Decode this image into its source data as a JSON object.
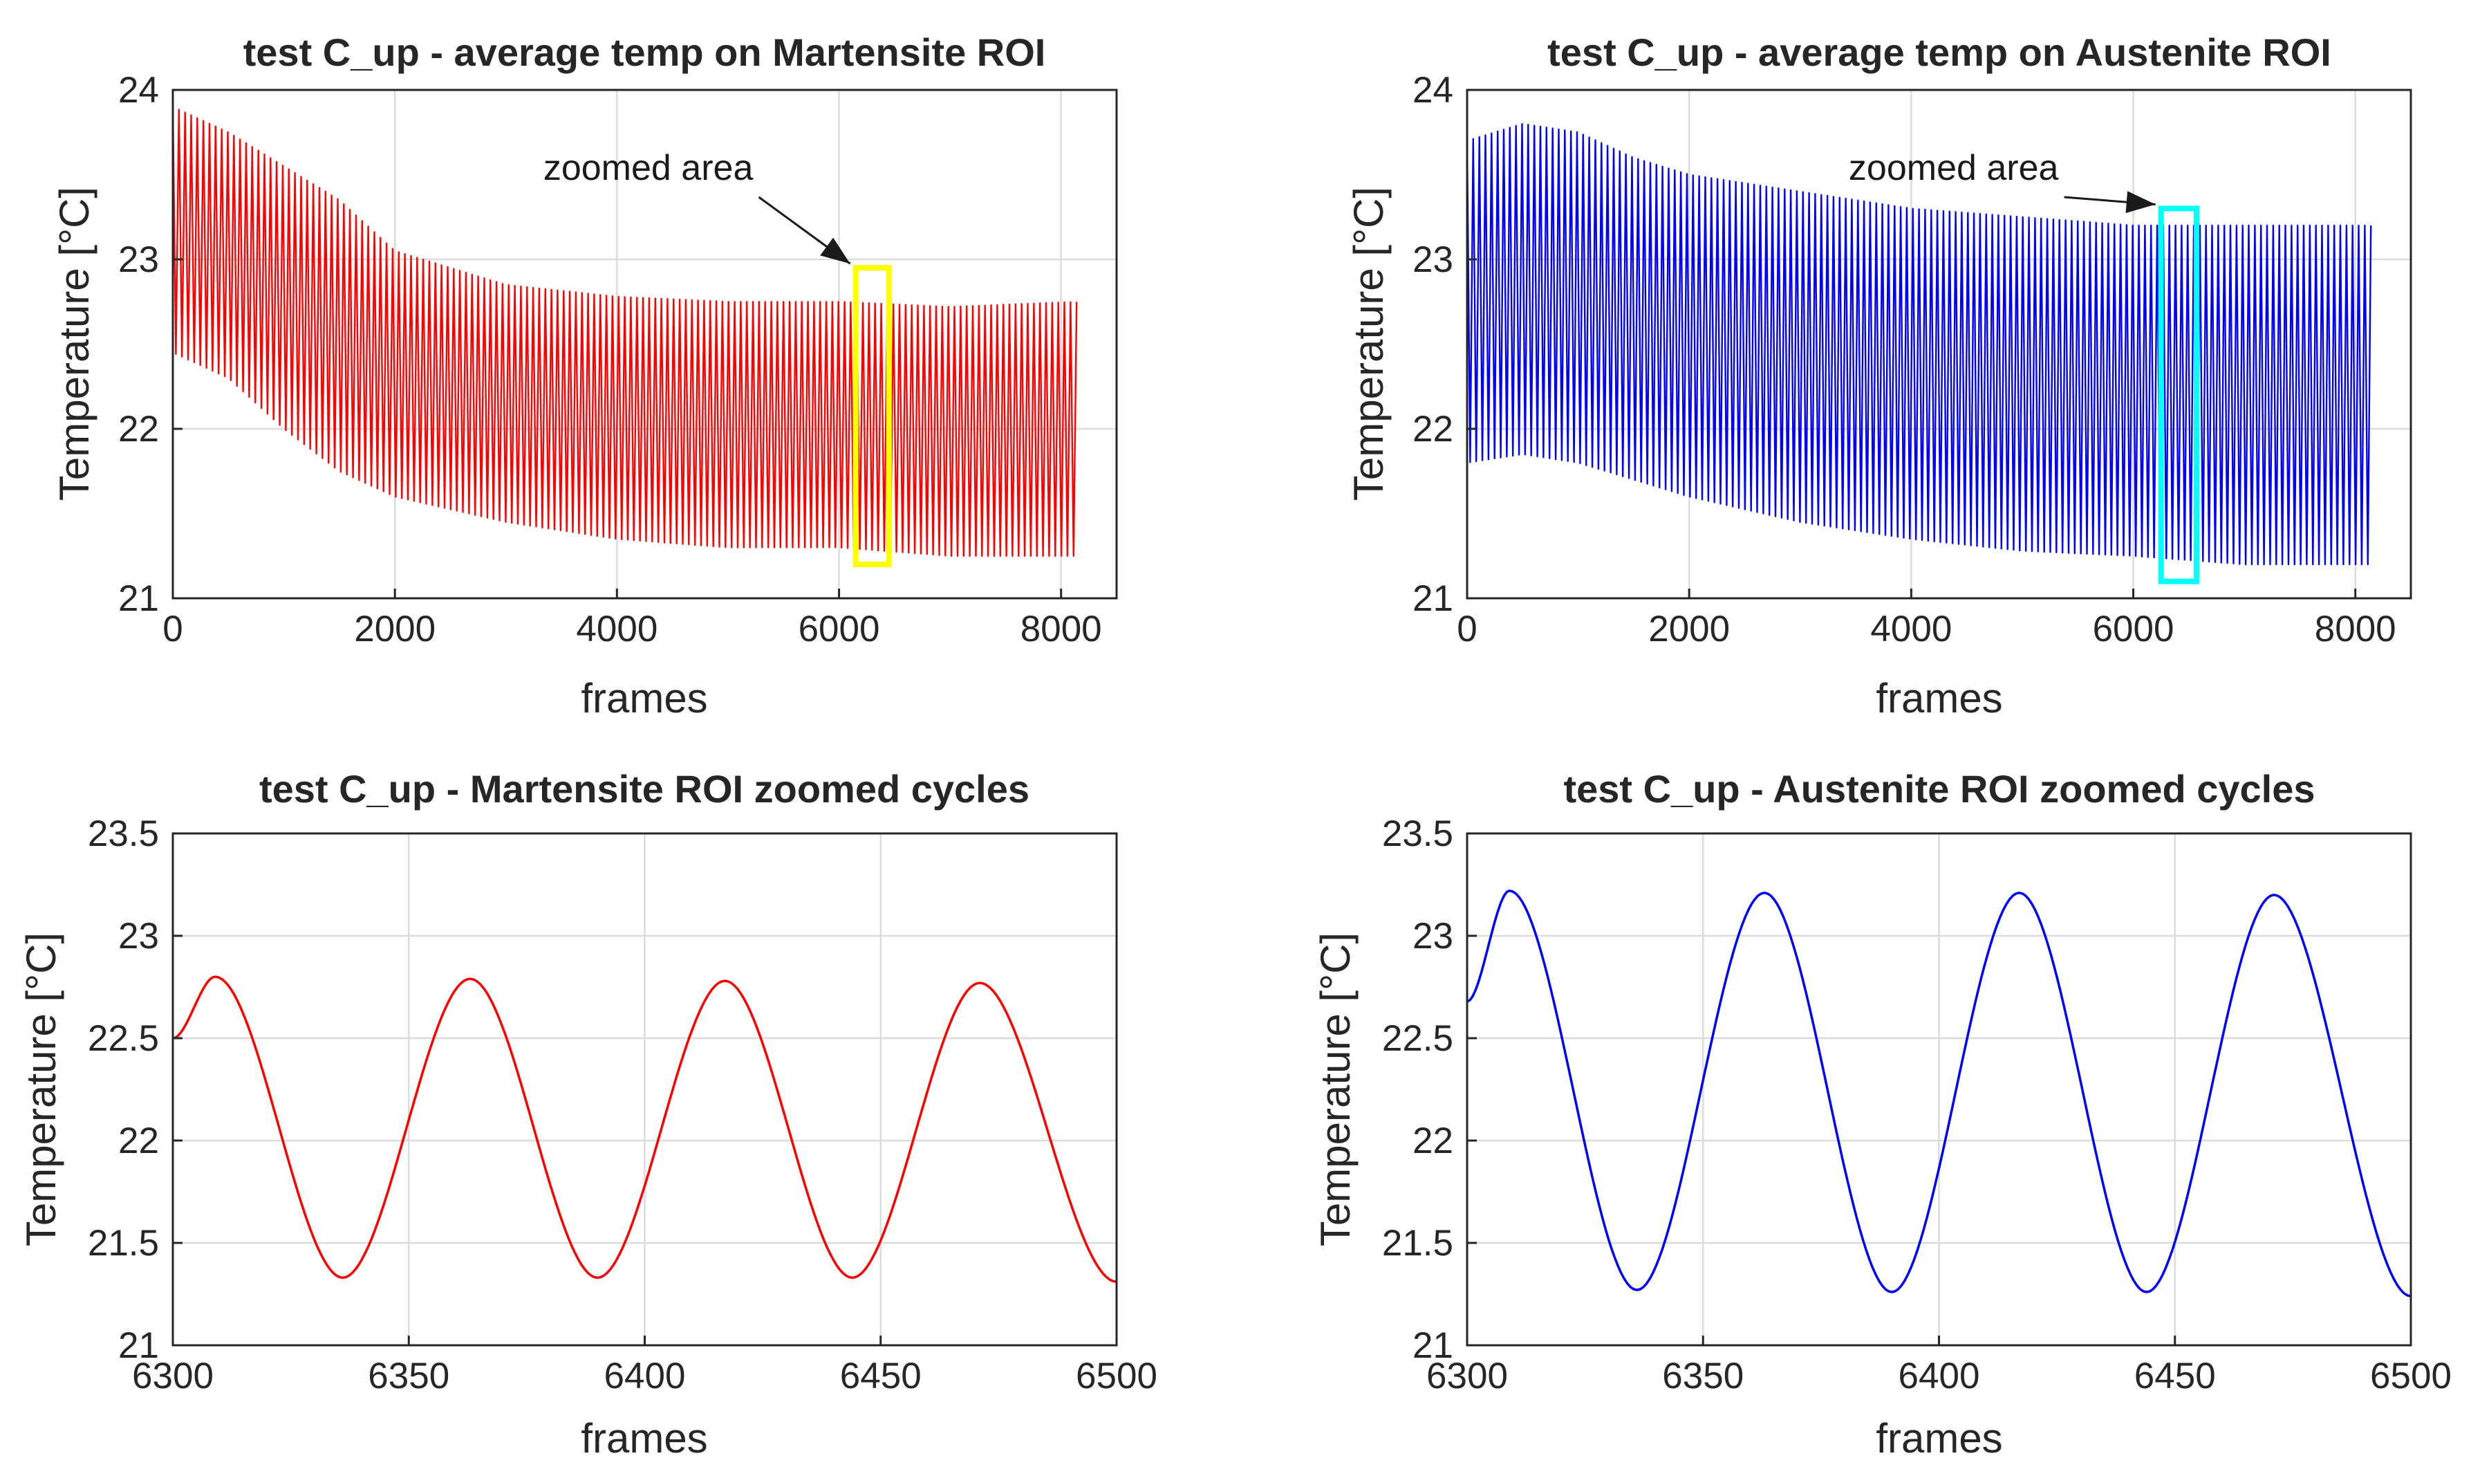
{
  "chart_data": [
    {
      "type": "line",
      "title": "test C_up - average temp on Martensite ROI",
      "xlabel": "frames",
      "ylabel": "Temperature [°C]",
      "xlim": [
        0,
        8500
      ],
      "ylim": [
        21,
        24
      ],
      "xticks": [
        0,
        2000,
        4000,
        6000,
        8000
      ],
      "yticks": [
        21,
        22,
        23,
        24
      ],
      "xtick_labels": [
        "0",
        "2000",
        "4000",
        "6000",
        "8000"
      ],
      "ytick_labels": [
        "21",
        "22",
        "23",
        "24"
      ],
      "grid": true,
      "color": "#ff0000",
      "style": "dense-oscillation",
      "x_range": [
        0,
        8150
      ],
      "upper_envelope": {
        "x": [
          0,
          500,
          1000,
          1500,
          2000,
          3000,
          4000,
          5000,
          6000,
          7000,
          8150
        ],
        "y": [
          23.9,
          23.75,
          23.55,
          23.35,
          23.05,
          22.85,
          22.78,
          22.75,
          22.75,
          22.72,
          22.75
        ]
      },
      "lower_envelope": {
        "x": [
          0,
          500,
          1000,
          1500,
          2000,
          3000,
          4000,
          5000,
          6000,
          7000,
          8150
        ],
        "y": [
          22.45,
          22.3,
          22.0,
          21.75,
          21.6,
          21.45,
          21.35,
          21.3,
          21.3,
          21.25,
          21.25
        ]
      },
      "annotation": {
        "text": "zoomed area",
        "box_x": [
          6150,
          6450
        ],
        "box_y": [
          21.2,
          22.95
        ],
        "box_color": "#ffff00"
      }
    },
    {
      "type": "line",
      "title": "test C_up - average temp on Austenite ROI",
      "xlabel": "frames",
      "ylabel": "Temperature [°C]",
      "xlim": [
        0,
        8500
      ],
      "ylim": [
        21,
        24
      ],
      "xticks": [
        0,
        2000,
        4000,
        6000,
        8000
      ],
      "yticks": [
        21,
        22,
        23,
        24
      ],
      "xtick_labels": [
        "0",
        "2000",
        "4000",
        "6000",
        "8000"
      ],
      "ytick_labels": [
        "21",
        "22",
        "23",
        "24"
      ],
      "grid": true,
      "color": "#0000ff",
      "style": "dense-oscillation",
      "x_range": [
        0,
        8150
      ],
      "upper_envelope": {
        "x": [
          0,
          500,
          1000,
          1500,
          2000,
          3000,
          4000,
          5000,
          6000,
          7000,
          8150
        ],
        "y": [
          23.7,
          23.8,
          23.75,
          23.6,
          23.5,
          23.4,
          23.3,
          23.25,
          23.2,
          23.2,
          23.2
        ]
      },
      "lower_envelope": {
        "x": [
          0,
          500,
          1000,
          1500,
          2000,
          3000,
          4000,
          5000,
          6000,
          7000,
          8150
        ],
        "y": [
          21.8,
          21.85,
          21.8,
          21.7,
          21.6,
          21.45,
          21.35,
          21.28,
          21.25,
          21.2,
          21.2
        ]
      },
      "annotation": {
        "text": "zoomed area",
        "box_x": [
          6250,
          6570
        ],
        "box_y": [
          21.1,
          23.3
        ],
        "box_color": "#00ffff"
      }
    },
    {
      "type": "line",
      "title": "test C_up - Martensite ROI zoomed cycles",
      "xlabel": "frames",
      "ylabel": "Temperature [°C]",
      "xlim": [
        6300,
        6500
      ],
      "ylim": [
        21,
        23.5
      ],
      "xticks": [
        6300,
        6350,
        6400,
        6450,
        6500
      ],
      "yticks": [
        21,
        21.5,
        22,
        22.5,
        23,
        23.5
      ],
      "xtick_labels": [
        "6300",
        "6350",
        "6400",
        "6450",
        "6500"
      ],
      "ytick_labels": [
        "21",
        "21.5",
        "22",
        "22.5",
        "23",
        "23.5"
      ],
      "grid": true,
      "color": "#ff0000",
      "style": "line",
      "x": [
        6300,
        6309,
        6336,
        6363,
        6390,
        6417,
        6444,
        6471,
        6500
      ],
      "y": [
        22.5,
        22.8,
        21.33,
        22.79,
        21.33,
        22.78,
        21.33,
        22.77,
        21.31
      ]
    },
    {
      "type": "line",
      "title": "test C_up - Austenite ROI zoomed cycles",
      "xlabel": "frames",
      "ylabel": "Temperature [°C]",
      "xlim": [
        6300,
        6500
      ],
      "ylim": [
        21,
        23.5
      ],
      "xticks": [
        6300,
        6350,
        6400,
        6450,
        6500
      ],
      "yticks": [
        21,
        21.5,
        22,
        22.5,
        23,
        23.5
      ],
      "xtick_labels": [
        "6300",
        "6350",
        "6400",
        "6450",
        "6500"
      ],
      "ytick_labels": [
        "21",
        "21.5",
        "22",
        "22.5",
        "23",
        "23.5"
      ],
      "grid": true,
      "color": "#0000ff",
      "style": "line",
      "x": [
        6300,
        6309,
        6336,
        6363,
        6390,
        6417,
        6444,
        6471,
        6500
      ],
      "y": [
        22.68,
        23.22,
        21.27,
        23.21,
        21.26,
        23.21,
        21.26,
        23.2,
        21.24
      ]
    }
  ]
}
